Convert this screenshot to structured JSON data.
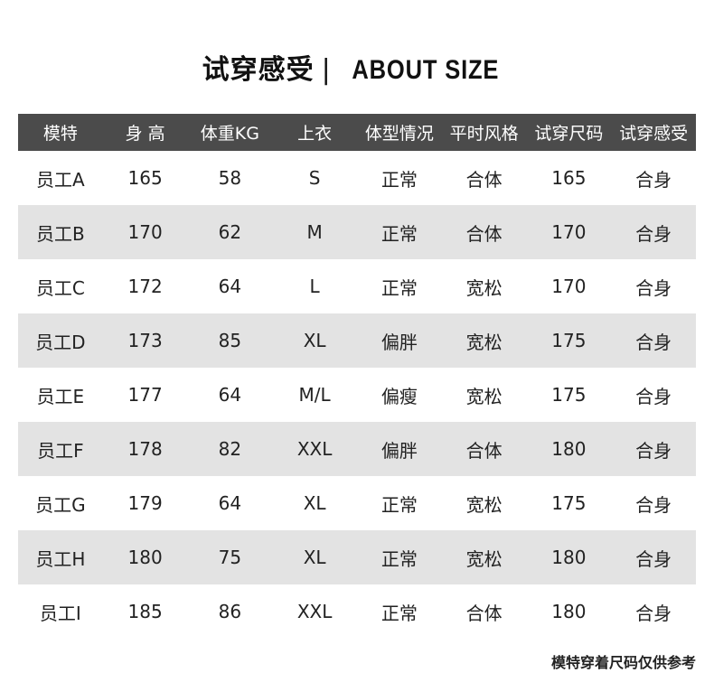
{
  "title": {
    "cn": "试穿感受",
    "sep": "|",
    "en": "ABOUT SIZE"
  },
  "table": {
    "headers": [
      "模特",
      "身 高",
      "体重KG",
      "上衣",
      "体型情况",
      "平时风格",
      "试穿尺码",
      "试穿感受"
    ],
    "rows": [
      [
        "员工A",
        "165",
        "58",
        "S",
        "正常",
        "合体",
        "165",
        "合身"
      ],
      [
        "员工B",
        "170",
        "62",
        "M",
        "正常",
        "合体",
        "170",
        "合身"
      ],
      [
        "员工C",
        "172",
        "64",
        "L",
        "正常",
        "宽松",
        "170",
        "合身"
      ],
      [
        "员工D",
        "173",
        "85",
        "XL",
        "偏胖",
        "宽松",
        "175",
        "合身"
      ],
      [
        "员工E",
        "177",
        "64",
        "M/L",
        "偏瘦",
        "宽松",
        "175",
        "合身"
      ],
      [
        "员工F",
        "178",
        "82",
        "XXL",
        "偏胖",
        "合体",
        "180",
        "合身"
      ],
      [
        "员工G",
        "179",
        "64",
        "XL",
        "正常",
        "宽松",
        "175",
        "合身"
      ],
      [
        "员工H",
        "180",
        "75",
        "XL",
        "正常",
        "宽松",
        "180",
        "合身"
      ],
      [
        "员工I",
        "185",
        "86",
        "XXL",
        "正常",
        "合体",
        "180",
        "合身"
      ]
    ]
  },
  "footnote": "模特穿着尺码仅供参考"
}
